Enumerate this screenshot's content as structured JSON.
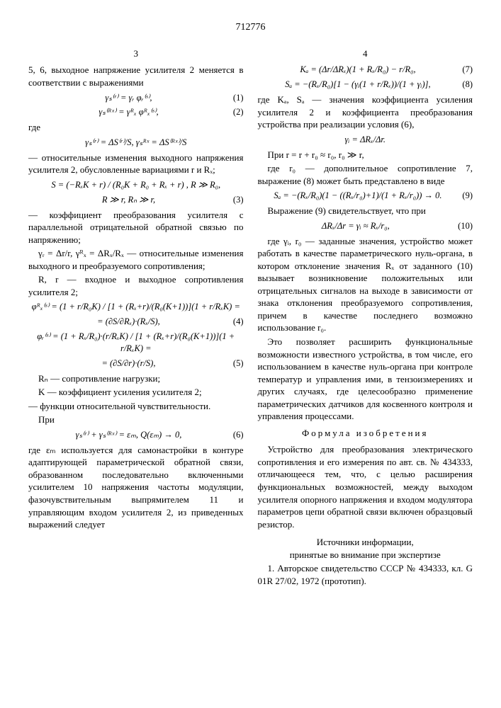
{
  "doc_number": "712776",
  "left": {
    "page": "3",
    "p1": "5, 6, выходное напряжение усилителя 2 меняется в соответствии с выражениями",
    "eq1": "γₛ⁽ʳ⁾ = γᵣ φᵣ⁽ˢ⁾,",
    "eq1n": "(1)",
    "eq2": "γₛ⁽ᴿˣ⁾ = γᴿₓ φᴿₓ⁽ˢ⁾,",
    "eq2n": "(2)",
    "where": "где",
    "eq3": "γₛ⁽ʳ⁾ = ΔS⁽ʳ⁾/S,   γₛᴿˣ = ΔS⁽ᴿˣ⁾/S",
    "p2": "— относительные изменения выходного напряжения усилителя 2, обусловленные вариациями r и Rₓ;",
    "eq4": "S = (−RₓK + r) / (R₀K + R₀ + Rₓ + r) ,  R ≫ R₀,",
    "eq5": "R ≫ r,  Rₙ ≫ r,",
    "eq5n": "(3)",
    "p3": "— коэффициент преобразования усилителя с параллельной отрицательной обратной связью по напряжению;",
    "p4": "γᵣ = Δr/r, γᴿₓ = ΔRₓ/Rₓ — относительные изменения выходного и преобразуемого сопротивления;",
    "p5": "R, r — входное и выходное сопротивления усилителя 2;",
    "eq6a": "φᴿₓ⁽ˢ⁾ = (1 + r/R₀K) / [1 + (Rₓ+r)/(R₀(K+1))](1 + r/RₓK) =",
    "eq6b": "= (∂S/∂Rₓ)·(Rₓ/S),",
    "eq6n": "(4)",
    "eq7a": "φᵣ⁽ˢ⁾ = (1 + Rₓ/R₀)·(r/RₓK) / [1 + (Rₓ+r)/(R₀(K+1))](1 + r/RₓK) =",
    "eq7b": "= (∂S/∂r)·(r/S),",
    "eq7n": "(5)",
    "p6": "Rₙ — сопротивление нагрузки;",
    "p7": "K — коэффициент усиления усилителя 2;",
    "p8": "— функции относительной чувствительности.",
    "p9": "При",
    "eq8": "γₛ⁽ʳ⁾ + γₛ⁽ᴿˣ⁾ = εₘ,  Q(εₘ) → 0,",
    "eq8n": "(6)",
    "p10": "где εₘ используется для самонастройки в контуре адаптирующей параметрической обратной связи, образованном последовательно включенными усилителем 10 напряжения частоты модуляции, фазочувствительным выпрямителем 11 и управляющим входом усилителя 2, из приведенных выражений следует"
  },
  "right": {
    "page": "4",
    "eq1": "Kₐ = (Δr/ΔRₓ)(1 + Rₓ/R₀) − r/R₀,",
    "eq1n": "(7)",
    "eq2": "Sₐ = −(Rₓ/R₀)[1 − (γᵢ(1 + r/Rₓ))/(1 + γᵢ)],",
    "eq2n": "(8)",
    "p1": "где Kₐ, Sₐ — значения коэффициента усиления усилителя 2 и коэффициента преобразования устройства при реализации условия (6),",
    "eq3": "γᵢ = ΔRₓ/Δr.",
    "p2": "При r = r + r₀ ≈ r₀, r₀ ≫ r,",
    "p3": "где r₀ — дополнительное сопротивление 7, выражение (8) может быть представлено в виде",
    "eq4": "Sₐ = −(Rₓ/R₀)(1 − ((Rₓ/r₀)+1)/(1 + Rₓ/r₀)) → 0.",
    "eq4n": "(9)",
    "p4": "Выражение (9) свидетельствует, что при",
    "eq5": "ΔRₓ/Δr = γᵢ ≈ Rₓ/r₀,",
    "eq5n": "(10)",
    "p5": "где γᵢ, r₀ — заданные значения, устройство может работать в качестве параметрического нуль-органа, в котором отклонение значения Rₓ от заданного (10) вызывает возникновение положительных или отрицательных сигналов на выходе в зависимости от знака отклонения преобразуемого сопротивления, причем в качестве последнего возможно использование r₀.",
    "p6": "Это позволяет расширить функциональные возможности известного устройства, в том числе, его использованием в качестве нуль-органа при контроле температур и управления ими, в тензоизмерениях и других случаях, где целесообразно применение параметрических датчиков для косвенного контроля и управления процессами.",
    "formula_title": "Формула изобретения",
    "p7": "Устройство для преобразования электрического сопротивления и его измерения по авт. св. № 434333, отличающееся тем, что, с целью расширения функциональных возможностей, между выходом усилителя опорного напряжения и входом модулятора параметров цепи обратной связи включен образцовый резистор.",
    "sources_title": "Источники информации,",
    "sources_sub": "принятые во внимание при экспертизе",
    "p8": "1. Авторское свидетельство СССР № 434333, кл. G 01R 27/02, 1972 (прототип)."
  }
}
